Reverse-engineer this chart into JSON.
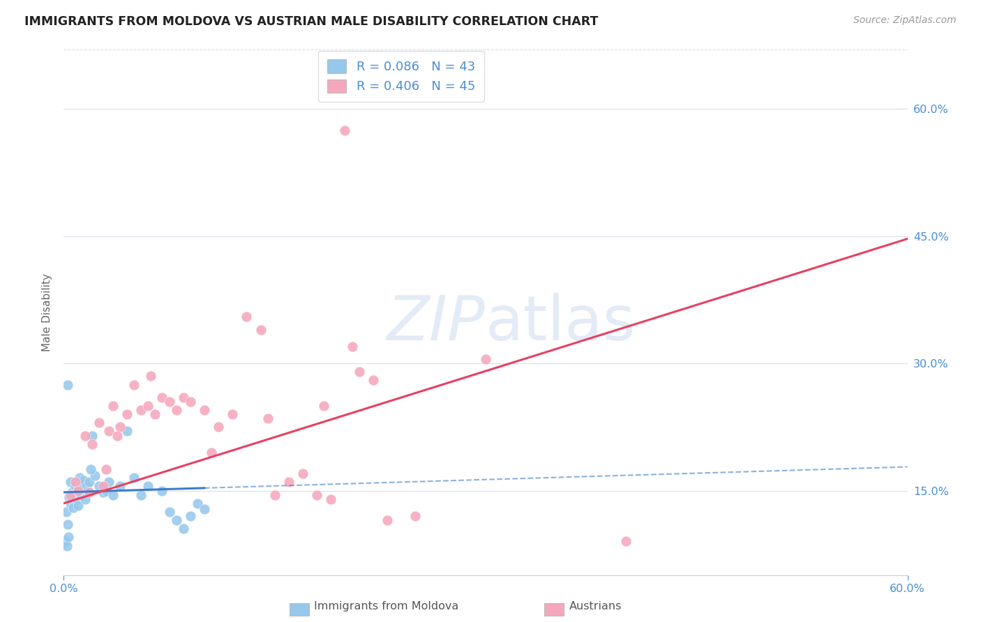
{
  "title": "IMMIGRANTS FROM MOLDOVA VS AUSTRIAN MALE DISABILITY CORRELATION CHART",
  "source": "Source: ZipAtlas.com",
  "ylabel": "Male Disability",
  "legend_label_blue": "Immigrants from Moldova",
  "legend_label_pink": "Austrians",
  "R_blue": 0.086,
  "N_blue": 43,
  "R_pink": 0.406,
  "N_pink": 45,
  "color_blue_dot": "#96C8EC",
  "color_pink_dot": "#F5A8BC",
  "color_blue_line": "#3A7DC9",
  "color_pink_line": "#E84060",
  "color_label": "#4A8ED4",
  "watermark_color": "#C8D8EE",
  "grid_color": "#DCDCF0",
  "background_color": "#FFFFFF",
  "xlim": [
    0,
    60
  ],
  "ylim": [
    5,
    67
  ],
  "ytick_values": [
    15,
    30,
    45,
    60
  ],
  "blue_solid_x_end": 10,
  "blue_line_intercept": 14.8,
  "blue_line_slope": 0.05,
  "pink_line_intercept": 13.5,
  "pink_line_slope": 0.52,
  "blue_dots": [
    [
      0.2,
      12.5
    ],
    [
      0.3,
      11.0
    ],
    [
      0.4,
      14.2
    ],
    [
      0.5,
      16.0
    ],
    [
      0.5,
      13.5
    ],
    [
      0.6,
      14.8
    ],
    [
      0.7,
      13.0
    ],
    [
      0.8,
      15.5
    ],
    [
      0.9,
      14.0
    ],
    [
      1.0,
      15.2
    ],
    [
      1.0,
      13.2
    ],
    [
      1.1,
      16.5
    ],
    [
      1.2,
      14.5
    ],
    [
      1.3,
      15.8
    ],
    [
      1.4,
      16.2
    ],
    [
      1.5,
      14.0
    ],
    [
      1.6,
      15.5
    ],
    [
      1.7,
      15.0
    ],
    [
      1.8,
      16.0
    ],
    [
      2.0,
      21.5
    ],
    [
      2.2,
      16.8
    ],
    [
      2.5,
      15.5
    ],
    [
      2.8,
      14.8
    ],
    [
      3.0,
      15.0
    ],
    [
      3.5,
      14.5
    ],
    [
      4.0,
      15.5
    ],
    [
      4.5,
      22.0
    ],
    [
      5.0,
      16.5
    ],
    [
      5.5,
      14.5
    ],
    [
      6.0,
      15.5
    ],
    [
      7.0,
      15.0
    ],
    [
      7.5,
      12.5
    ],
    [
      8.0,
      11.5
    ],
    [
      8.5,
      10.5
    ],
    [
      9.0,
      12.0
    ],
    [
      9.5,
      13.5
    ],
    [
      10.0,
      12.8
    ],
    [
      0.15,
      9.0
    ],
    [
      0.25,
      8.5
    ],
    [
      0.3,
      27.5
    ],
    [
      0.35,
      9.5
    ],
    [
      1.9,
      17.5
    ],
    [
      3.2,
      16.0
    ]
  ],
  "pink_dots": [
    [
      0.5,
      14.5
    ],
    [
      0.8,
      16.0
    ],
    [
      1.0,
      15.0
    ],
    [
      1.5,
      21.5
    ],
    [
      2.0,
      20.5
    ],
    [
      2.5,
      23.0
    ],
    [
      3.0,
      17.5
    ],
    [
      3.2,
      22.0
    ],
    [
      3.5,
      25.0
    ],
    [
      4.0,
      22.5
    ],
    [
      4.5,
      24.0
    ],
    [
      5.0,
      27.5
    ],
    [
      5.5,
      24.5
    ],
    [
      6.0,
      25.0
    ],
    [
      6.5,
      24.0
    ],
    [
      7.0,
      26.0
    ],
    [
      7.5,
      25.5
    ],
    [
      8.0,
      24.5
    ],
    [
      8.5,
      26.0
    ],
    [
      9.0,
      25.5
    ],
    [
      10.0,
      24.5
    ],
    [
      11.0,
      22.5
    ],
    [
      12.0,
      24.0
    ],
    [
      13.0,
      35.5
    ],
    [
      14.0,
      34.0
    ],
    [
      15.0,
      14.5
    ],
    [
      16.0,
      16.0
    ],
    [
      17.0,
      17.0
    ],
    [
      18.0,
      14.5
    ],
    [
      19.0,
      14.0
    ],
    [
      20.0,
      57.5
    ],
    [
      21.0,
      29.0
    ],
    [
      22.0,
      28.0
    ],
    [
      3.8,
      21.5
    ],
    [
      6.2,
      28.5
    ],
    [
      10.5,
      19.5
    ],
    [
      14.5,
      23.5
    ],
    [
      18.5,
      25.0
    ],
    [
      20.5,
      32.0
    ],
    [
      25.0,
      12.0
    ],
    [
      30.0,
      30.5
    ],
    [
      40.0,
      9.0
    ],
    [
      1.8,
      14.8
    ],
    [
      2.8,
      15.5
    ],
    [
      23.0,
      11.5
    ]
  ]
}
